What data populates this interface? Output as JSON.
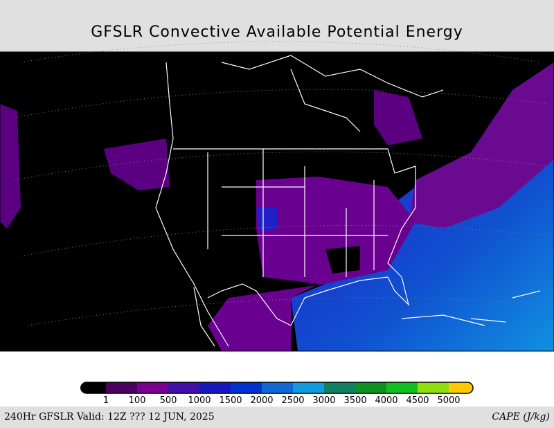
{
  "header": {
    "title": "GFSLR Convective Available Potential Energy"
  },
  "legend": {
    "labels": [
      "1",
      "100",
      "500",
      "1000",
      "1500",
      "2000",
      "2500",
      "3000",
      "3500",
      "4000",
      "4500",
      "5000"
    ]
  },
  "footer": {
    "left": "240Hr GFSLR Valid: 12Z ??? 12 JUN, 2025",
    "right": "CAPE (J/kg)"
  }
}
